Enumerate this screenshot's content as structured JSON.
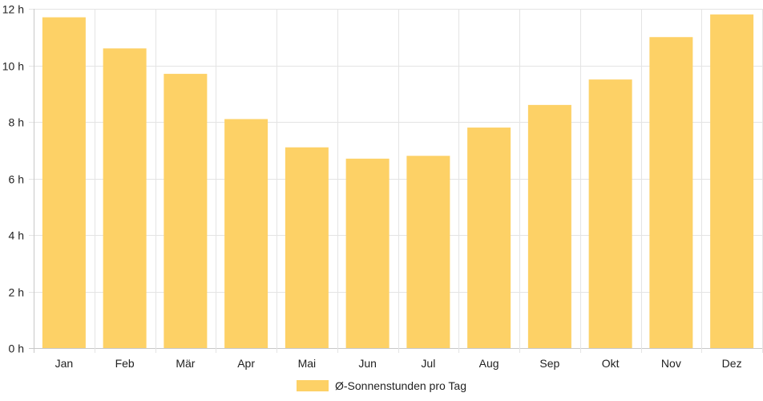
{
  "chart_data": {
    "type": "bar",
    "categories": [
      "Jan",
      "Feb",
      "Mär",
      "Apr",
      "Mai",
      "Jun",
      "Jul",
      "Aug",
      "Sep",
      "Okt",
      "Nov",
      "Dez"
    ],
    "series": [
      {
        "name": "Ø-Sonnenstunden pro Tag",
        "values": [
          11.7,
          10.6,
          9.7,
          8.1,
          7.1,
          6.7,
          6.8,
          7.8,
          8.6,
          9.5,
          11.0,
          11.8
        ],
        "color": "#fdd166"
      }
    ],
    "ylim": [
      0,
      12
    ],
    "yticks": [
      0,
      2,
      4,
      6,
      8,
      10,
      12
    ],
    "y_tick_suffix": " h",
    "grid": true,
    "legend_position": "bottom-center",
    "title": "",
    "xlabel": "",
    "ylabel": ""
  }
}
